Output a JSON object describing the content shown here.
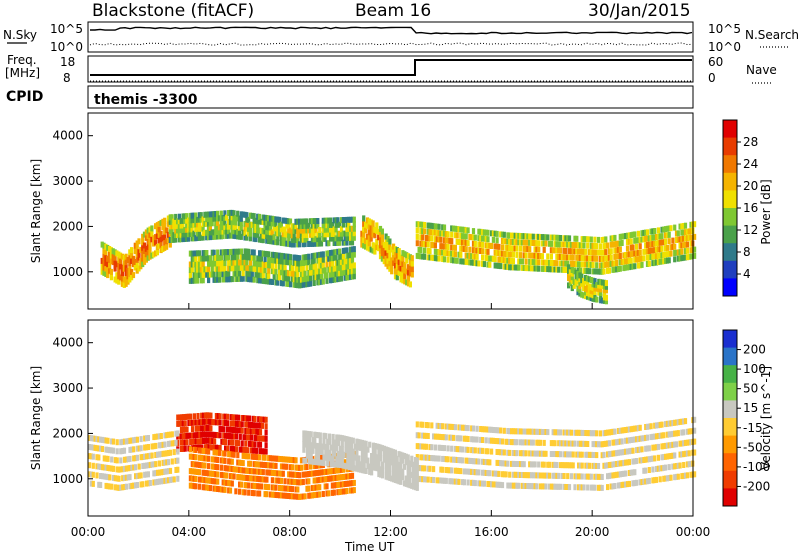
{
  "header": {
    "site": "Blackstone (fitACF)",
    "beam": "Beam 16",
    "date": "30/Jan/2015"
  },
  "small_panels": {
    "nsky_label": "N.Sky",
    "nsearch_label": "N.Search",
    "nsky_ticks": [
      "10^5",
      "10^0"
    ],
    "nsearch_ticks": [
      "10^5",
      "10^0"
    ],
    "freq_label": "Freq.",
    "freq_unit": "[MHz]",
    "freq_ticks": [
      "18",
      "8"
    ],
    "nave_label": "Nave",
    "nave_ticks": [
      "60",
      "0"
    ],
    "cpid_label": "CPID",
    "cpid_value": "themis -3300"
  },
  "colors": {
    "power_scale": [
      "#0000ff",
      "#1f3fbf",
      "#2f7a8a",
      "#4aa14a",
      "#7fc832",
      "#f0e000",
      "#f5b400",
      "#f07800",
      "#e83c00",
      "#e00000"
    ],
    "velocity_scale": [
      "#1a2fd0",
      "#2a74c8",
      "#47b247",
      "#7ed048",
      "#c8c8c0",
      "#ffcc33",
      "#ff9a00",
      "#ff6400",
      "#f03c00",
      "#e00000"
    ],
    "ground_scatter": "#bebeb6"
  },
  "chart_data": [
    {
      "type": "heatmap",
      "title": "Power",
      "xlabel": "",
      "ylabel": "Slant Range [km]",
      "yticks": [
        1000,
        2000,
        3000,
        4000
      ],
      "ylim": [
        180,
        4500
      ],
      "xlim": [
        0,
        24
      ],
      "colorbar": {
        "label": "Power [dB]",
        "ticks": [
          4,
          8,
          12,
          16,
          20,
          24,
          28
        ],
        "range": [
          0,
          32
        ]
      },
      "bands": [
        {
          "t": [
            0.5,
            3.2
          ],
          "r_center": [
            1300,
            1000,
            1600,
            1900
          ],
          "width": 300,
          "level": 26
        },
        {
          "t": [
            3.2,
            10.5
          ],
          "r_center": [
            1950,
            2050,
            1850,
            1900
          ],
          "width": 250,
          "level": 18
        },
        {
          "t": [
            4.0,
            10.5
          ],
          "r_center": [
            1100,
            1150,
            1000,
            1200
          ],
          "width": 300,
          "level": 18
        },
        {
          "t": [
            10.8,
            12.8
          ],
          "r_center": [
            1900,
            1700,
            1200,
            1000
          ],
          "width": 300,
          "level": 24
        },
        {
          "t": [
            13.0,
            24.0
          ],
          "r_center": [
            1700,
            1450,
            1350,
            1700
          ],
          "width": 350,
          "level": 22
        },
        {
          "t": [
            19.0,
            20.5
          ],
          "r_center": [
            900,
            700,
            600,
            550
          ],
          "width": 200,
          "level": 20
        }
      ]
    },
    {
      "type": "heatmap",
      "title": "Velocity",
      "xlabel": "Time UT",
      "ylabel": "Slant Range [km]",
      "xticks": [
        "00:00",
        "04:00",
        "08:00",
        "12:00",
        "16:00",
        "20:00",
        "00:00"
      ],
      "yticks": [
        1000,
        2000,
        3000,
        4000
      ],
      "ylim": [
        180,
        4500
      ],
      "xlim": [
        0,
        24
      ],
      "colorbar": {
        "label": "Velocity [m s^-1]",
        "ticks": [
          200,
          100,
          50,
          15,
          -15,
          -50,
          -100,
          -200
        ],
        "range": [
          -250,
          250
        ]
      },
      "bands": [
        {
          "t": [
            3.5,
            7.0
          ],
          "r_center": [
            2000,
            2050,
            2000,
            1950
          ],
          "width": 350,
          "level": -200
        },
        {
          "t": [
            4.0,
            10.5
          ],
          "r_center": [
            1250,
            1100,
            1000,
            1150
          ],
          "width": 400,
          "level": -100
        },
        {
          "t": [
            0.0,
            3.5
          ],
          "r_center": [
            1400,
            1300,
            1400,
            1500
          ],
          "width": 500,
          "level": 0
        },
        {
          "t": [
            13.0,
            24.0
          ],
          "r_center": [
            1600,
            1450,
            1400,
            1700
          ],
          "width": 600,
          "level": 0
        },
        {
          "t": [
            8.5,
            13.0
          ],
          "r_center": [
            1700,
            1600,
            1400,
            1100
          ],
          "width": 300,
          "level": 30
        }
      ]
    }
  ]
}
